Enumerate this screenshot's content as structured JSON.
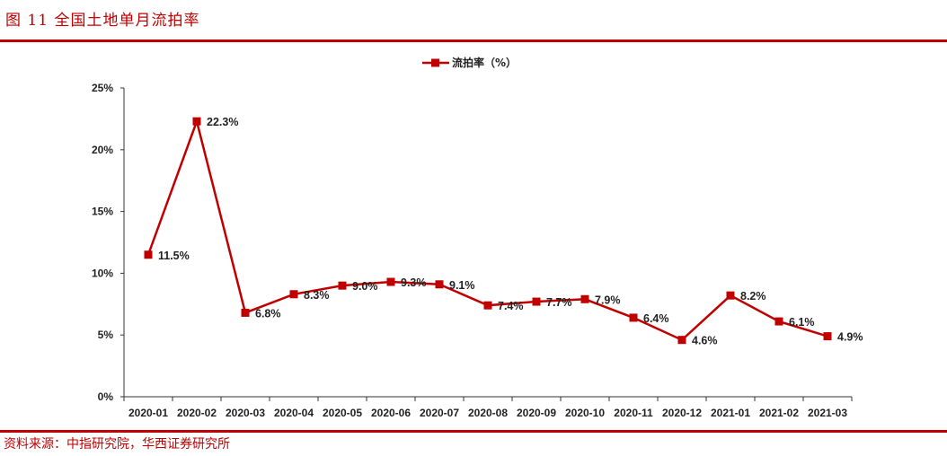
{
  "figure": {
    "title": "图 11    全国土地单月流拍率",
    "source": "资料来源：中指研究院，华西证券研究所"
  },
  "colors": {
    "accent": "#c00000",
    "series": "#c00000"
  },
  "chart_data": {
    "type": "line",
    "title": "",
    "xlabel": "",
    "ylabel": "",
    "categories": [
      "2020-01",
      "2020-02",
      "2020-03",
      "2020-04",
      "2020-05",
      "2020-06",
      "2020-07",
      "2020-08",
      "2020-09",
      "2020-10",
      "2020-11",
      "2020-12",
      "2021-01",
      "2021-02",
      "2021-03"
    ],
    "series": [
      {
        "name": "流拍率（%）",
        "values": [
          11.5,
          22.3,
          6.8,
          8.3,
          9.0,
          9.3,
          9.1,
          7.4,
          7.7,
          7.9,
          6.4,
          4.6,
          8.2,
          6.1,
          4.9
        ],
        "labels": [
          "11.5%",
          "22.3%",
          "6.8%",
          "8.3%",
          "9.0%",
          "9.3%",
          "9.1%",
          "7.4%",
          "7.7%",
          "7.9%",
          "6.4%",
          "4.6%",
          "8.2%",
          "6.1%",
          "4.9%"
        ]
      }
    ],
    "ylim": [
      0,
      25
    ],
    "yticks": [
      0,
      5,
      10,
      15,
      20,
      25
    ],
    "ytick_labels": [
      "0%",
      "5%",
      "10%",
      "15%",
      "20%",
      "25%"
    ],
    "grid": false,
    "legend": "top-center",
    "marker": "square"
  }
}
